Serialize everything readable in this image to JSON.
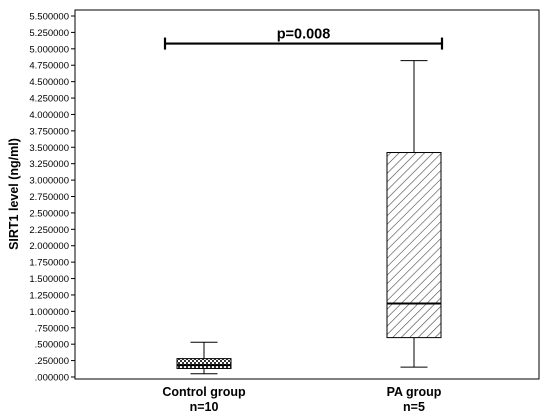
{
  "chart_data": {
    "type": "box",
    "ylabel": "SIRT1 level (ng/ml)",
    "ylim": [
      0,
      5.5
    ],
    "yticks": [
      ".000000",
      ".250000",
      ".500000",
      ".750000",
      "1.000000",
      "1.250000",
      "1.500000",
      "1.750000",
      "2.000000",
      "2.250000",
      "2.500000",
      "2.750000",
      "3.000000",
      "3.250000",
      "3.500000",
      "3.750000",
      "4.000000",
      "4.250000",
      "4.500000",
      "4.750000",
      "5.000000",
      "5.250000",
      "5.500000"
    ],
    "groups": [
      {
        "name": "Control group",
        "n_label": "n=10",
        "min": 0.05,
        "q1": 0.13,
        "median": 0.18,
        "q3": 0.28,
        "max": 0.53,
        "pattern": "checker"
      },
      {
        "name": "PA group",
        "n_label": "n=5",
        "min": 0.15,
        "q1": 0.6,
        "median": 1.12,
        "q3": 3.42,
        "max": 4.82,
        "pattern": "hatch"
      }
    ],
    "significance": {
      "label": "p=0.008",
      "y": 5.08
    },
    "grid": false
  }
}
